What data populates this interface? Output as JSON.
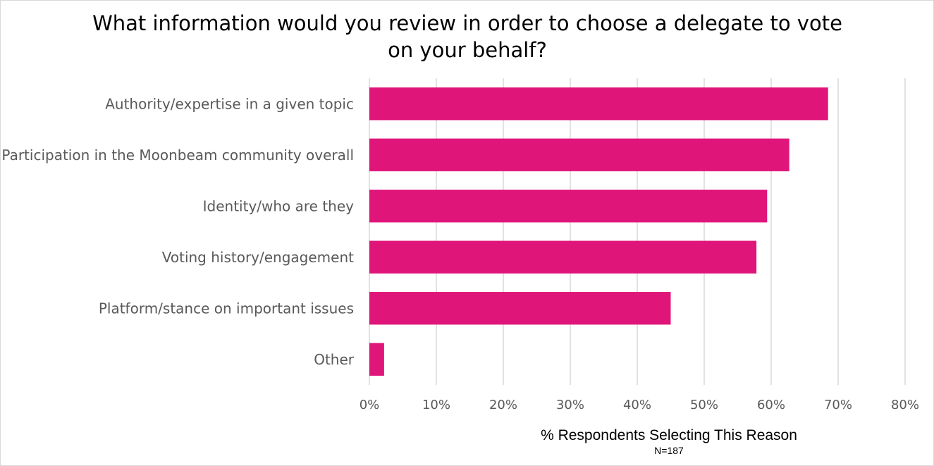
{
  "chart_data": {
    "type": "bar",
    "orientation": "horizontal",
    "title_lines": [
      "What information would you review in order to choose a delegate to vote",
      "on your behalf?"
    ],
    "categories": [
      "Authority/expertise in a given topic",
      "Participation in the Moonbeam community overall",
      "Identity/who are they",
      "Voting history/engagement",
      "Platform/stance on important issues",
      "Other"
    ],
    "values": [
      68.5,
      62.7,
      59.4,
      57.8,
      45.0,
      2.2
    ],
    "value_unit": "%",
    "xlim": [
      0,
      80
    ],
    "x_ticks": [
      "0%",
      "10%",
      "20%",
      "30%",
      "40%",
      "50%",
      "60%",
      "70%",
      "80%"
    ],
    "xlabel": "% Respondents Selecting This Reason",
    "note": "N=187",
    "bar_color": "#e0157a",
    "grid": "vertical",
    "legend": "none"
  }
}
